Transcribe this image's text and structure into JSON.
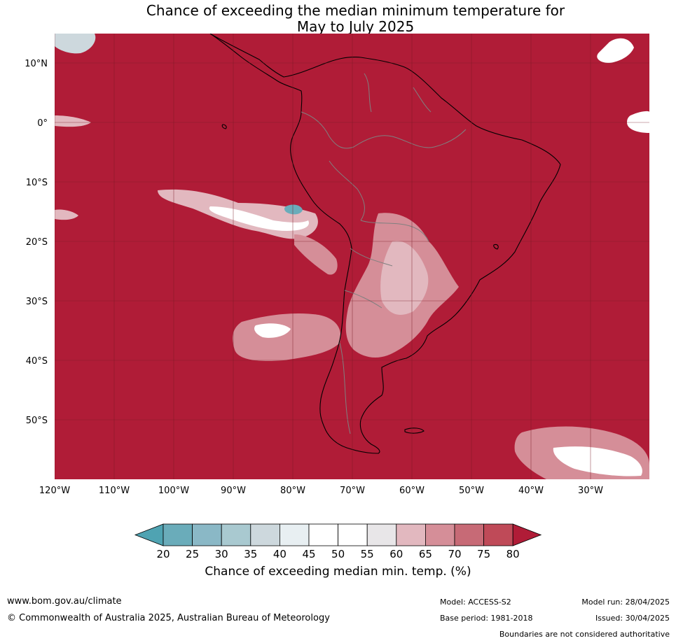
{
  "title": {
    "line1": "Chance of exceeding the median minimum temperature for",
    "line2": "May to July 2025"
  },
  "axes": {
    "lat_labels": [
      "10°N",
      "0°",
      "10°S",
      "20°S",
      "30°S",
      "40°S",
      "50°S"
    ],
    "lon_labels": [
      "120°W",
      "110°W",
      "100°W",
      "90°W",
      "80°W",
      "70°W",
      "60°W",
      "50°W",
      "40°W",
      "30°W"
    ]
  },
  "colorbar": {
    "title": "Chance of exceeding median min. temp. (%)",
    "ticks": [
      "20",
      "25",
      "30",
      "35",
      "40",
      "45",
      "50",
      "55",
      "60",
      "65",
      "70",
      "75",
      "80"
    ],
    "colors": [
      "#4fa3b2",
      "#6aacba",
      "#8ab8c6",
      "#a9c9d0",
      "#cdd8dd",
      "#e8eff2",
      "#ffffff",
      "#ffffff",
      "#e8e6e8",
      "#e2b8bf",
      "#d58e98",
      "#c76a76",
      "#bf4a58",
      "#b01c37"
    ]
  },
  "colors": {
    "dominant_field": "#b01c37",
    "grid": "#7a1a26",
    "coast": "#000000",
    "borders": "#808080"
  },
  "footer": {
    "website": "www.bom.gov.au/climate",
    "copyright": "© Commonwealth of Australia 2025, Australian Bureau of Meteorology",
    "model": "Model: ACCESS-S2",
    "base_period": "Base period: 1981-2018",
    "model_run": "Model run: 28/04/2025",
    "issued": "Issued: 30/04/2025",
    "disclaimer": "Boundaries are not considered authoritative"
  }
}
